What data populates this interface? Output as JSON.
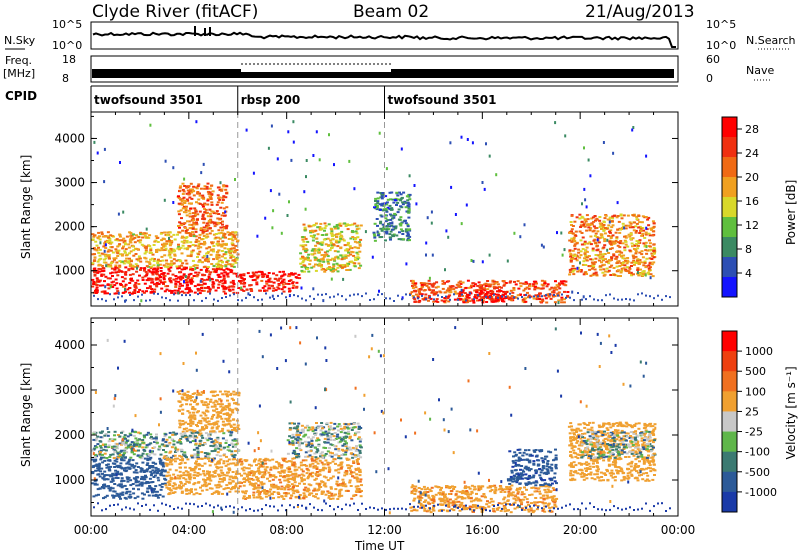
{
  "header": {
    "station": "Clyde River (fitACF)",
    "beam": "Beam 02",
    "date": "21/Aug/2013"
  },
  "top_panels": {
    "nsky_label": "N.Sky",
    "nsearch_label": "N.Search",
    "left_ticks": [
      "10^5",
      "10^0"
    ],
    "right_ticks": [
      "10^5",
      "10^0"
    ],
    "freq_label": "Freq.",
    "freq_unit": "[MHz]",
    "freq_ticks": [
      "18",
      "8"
    ],
    "nave_label": "Nave",
    "nave_ticks": [
      "60",
      "0"
    ],
    "cpid_label": "CPID",
    "cpid_segments": [
      {
        "name": "twofsound 3501",
        "start_hour": 0,
        "end_hour": 6
      },
      {
        "name": "rbsp 200",
        "start_hour": 6,
        "end_hour": 12
      },
      {
        "name": "twofsound 3501",
        "start_hour": 12,
        "end_hour": 24
      }
    ]
  },
  "colors": {
    "power_scale": [
      "#1414ff",
      "#2d4fb4",
      "#3b8a63",
      "#5fbf3e",
      "#d8d82a",
      "#f0a020",
      "#f06a14",
      "#f03010",
      "#ff0000"
    ],
    "velocity_scale": [
      "#1a3aa8",
      "#2c5a98",
      "#3b7a72",
      "#5fb64a",
      "#c8c8c8",
      "#f0a030",
      "#f07020",
      "#ee4010",
      "#ff0000"
    ]
  },
  "chart_data": [
    {
      "type": "heatmap",
      "title": "",
      "xlabel": "Time UT",
      "ylabel": "Slant Range [km]",
      "xlim": [
        0,
        24
      ],
      "ylim": [
        200,
        4600
      ],
      "x_ticks": [
        "00:00",
        "04:00",
        "08:00",
        "12:00",
        "16:00",
        "20:00",
        "00:00"
      ],
      "y_ticks": [
        "1000",
        "2000",
        "3000",
        "4000"
      ],
      "colorbar": {
        "label": "Power [dB]",
        "ticks": [
          "4",
          "8",
          "12",
          "16",
          "20",
          "24",
          "28"
        ],
        "range": [
          0,
          30
        ]
      },
      "echo_regions": [
        {
          "t0": 0,
          "t1": 6,
          "r0": 500,
          "r1": 1100,
          "value": 28
        },
        {
          "t0": 0,
          "t1": 6,
          "r0": 1100,
          "r1": 1900,
          "value": 18
        },
        {
          "t0": 3.5,
          "t1": 5.5,
          "r0": 1900,
          "r1": 3000,
          "value": 22
        },
        {
          "t0": 6,
          "t1": 8.5,
          "r0": 550,
          "r1": 1000,
          "value": 28
        },
        {
          "t0": 8.5,
          "t1": 11,
          "r0": 1000,
          "r1": 2100,
          "value": 16
        },
        {
          "t0": 11.5,
          "t1": 13,
          "r0": 1700,
          "r1": 2800,
          "value": 8
        },
        {
          "t0": 13,
          "t1": 19.5,
          "r0": 300,
          "r1": 800,
          "value": 24
        },
        {
          "t0": 15,
          "t1": 17,
          "r0": 300,
          "r1": 600,
          "value": 30
        },
        {
          "t0": 19.5,
          "t1": 23,
          "r0": 900,
          "r1": 2300,
          "value": 20
        }
      ]
    },
    {
      "type": "heatmap",
      "title": "",
      "xlabel": "Time UT",
      "ylabel": "Slant Range [km]",
      "xlim": [
        0,
        24
      ],
      "ylim": [
        200,
        4600
      ],
      "x_ticks": [
        "00:00",
        "04:00",
        "08:00",
        "12:00",
        "16:00",
        "20:00",
        "00:00"
      ],
      "y_ticks": [
        "1000",
        "2000",
        "3000",
        "4000"
      ],
      "colorbar": {
        "label": "Velocity [m s^-1]",
        "ticks": [
          "1000",
          "500",
          "100",
          "25",
          "-25",
          "-100",
          "-500",
          "-1000"
        ]
      },
      "echo_regions": [
        {
          "t0": 0,
          "t1": 3,
          "r0": 600,
          "r1": 1500,
          "value": 300
        },
        {
          "t0": 0,
          "t1": 6,
          "r0": 1500,
          "r1": 2100,
          "value": 0
        },
        {
          "t0": 3,
          "t1": 6,
          "r0": 700,
          "r1": 1500,
          "value": -300
        },
        {
          "t0": 3.5,
          "t1": 6,
          "r0": 2100,
          "r1": 3000,
          "value": -300
        },
        {
          "t0": 6,
          "t1": 11,
          "r0": 600,
          "r1": 1500,
          "value": -400
        },
        {
          "t0": 8,
          "t1": 11,
          "r0": 1500,
          "r1": 2300,
          "value": 0
        },
        {
          "t0": 13,
          "t1": 19,
          "r0": 300,
          "r1": 900,
          "value": -400
        },
        {
          "t0": 17,
          "t1": 19,
          "r0": 900,
          "r1": 1700,
          "value": 400
        },
        {
          "t0": 19.5,
          "t1": 23,
          "r0": 1000,
          "r1": 2300,
          "value": -300
        },
        {
          "t0": 20,
          "t1": 23,
          "r0": 1500,
          "r1": 2100,
          "value": 0
        }
      ]
    }
  ]
}
